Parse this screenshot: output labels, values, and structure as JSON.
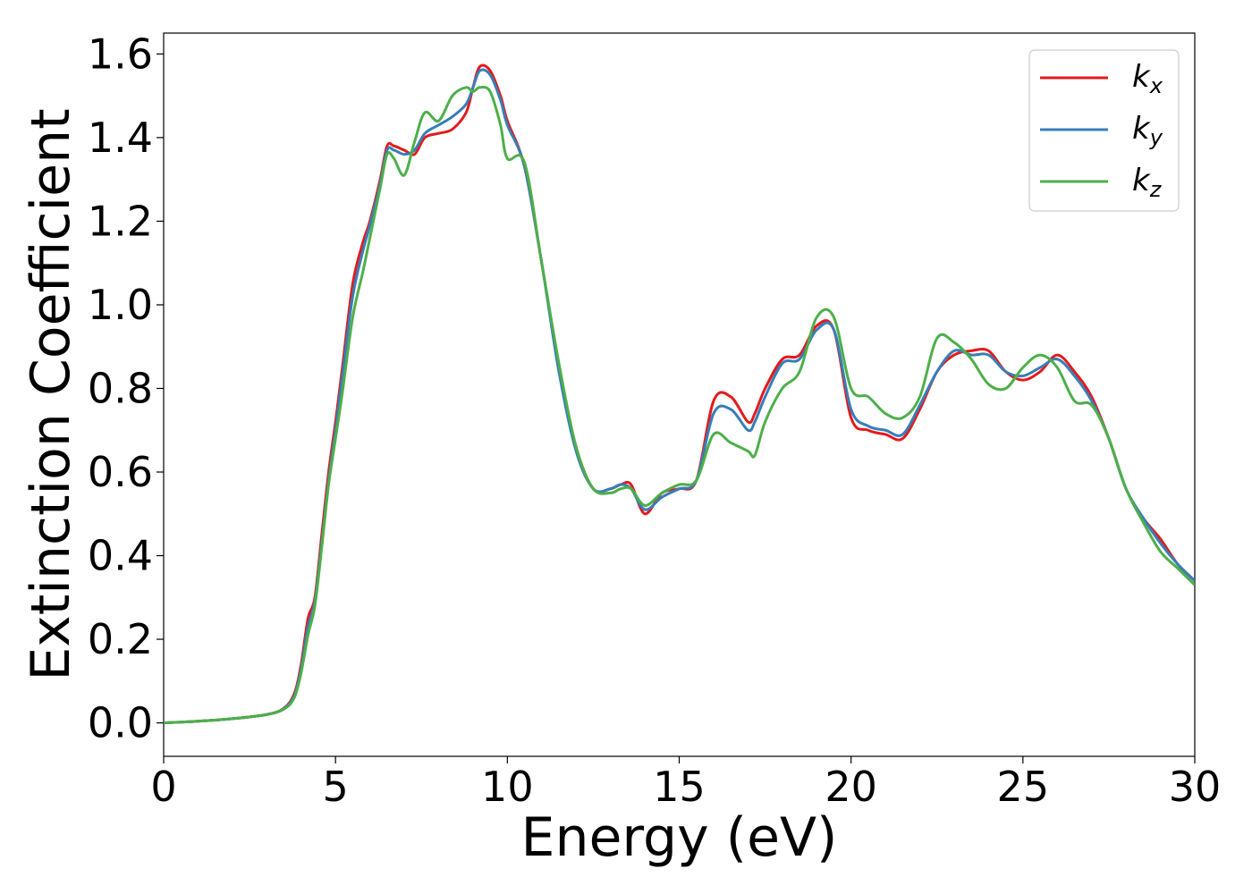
{
  "chart_data": {
    "type": "line",
    "xlabel": "Energy (eV)",
    "ylabel": "Extinction Coefficient",
    "xlim": [
      0,
      30
    ],
    "ylim": [
      -0.08,
      1.65
    ],
    "xticks": [
      0,
      5,
      10,
      15,
      20,
      25,
      30
    ],
    "xtick_labels": [
      "0",
      "5",
      "10",
      "15",
      "20",
      "25",
      "30"
    ],
    "yticks": [
      0.0,
      0.2,
      0.4,
      0.6,
      0.8,
      1.0,
      1.2,
      1.4,
      1.6
    ],
    "ytick_labels": [
      "0.0",
      "0.2",
      "0.4",
      "0.6",
      "0.8",
      "1.0",
      "1.2",
      "1.4",
      "1.6"
    ],
    "grid": false,
    "legend_position": "top-right",
    "series": [
      {
        "name": "k_x",
        "label_base": "k",
        "label_sub": "x",
        "color": "#e41a1c",
        "x": [
          0,
          1,
          2,
          3,
          3.5,
          3.8,
          4.0,
          4.2,
          4.4,
          4.6,
          4.8,
          5.0,
          5.2,
          5.5,
          5.8,
          6.0,
          6.3,
          6.5,
          6.7,
          7.0,
          7.3,
          7.6,
          8.0,
          8.4,
          8.8,
          9.0,
          9.2,
          9.5,
          9.8,
          10.0,
          10.5,
          11.0,
          11.5,
          12.0,
          12.5,
          13.0,
          13.3,
          13.6,
          14.0,
          14.5,
          15.0,
          15.5,
          16.0,
          16.5,
          17.0,
          17.2,
          17.5,
          18.0,
          18.5,
          19.0,
          19.5,
          20.0,
          20.5,
          21.0,
          21.5,
          22.0,
          22.5,
          23.0,
          23.5,
          24.0,
          24.5,
          25.0,
          25.5,
          26.0,
          26.5,
          27.0,
          27.5,
          28.0,
          28.5,
          29.0,
          29.5,
          30.0
        ],
        "values": [
          0.0,
          0.004,
          0.01,
          0.02,
          0.035,
          0.07,
          0.14,
          0.25,
          0.3,
          0.45,
          0.6,
          0.72,
          0.85,
          1.05,
          1.15,
          1.2,
          1.3,
          1.38,
          1.38,
          1.37,
          1.36,
          1.4,
          1.41,
          1.42,
          1.46,
          1.52,
          1.57,
          1.56,
          1.5,
          1.44,
          1.33,
          1.1,
          0.85,
          0.66,
          0.56,
          0.56,
          0.57,
          0.57,
          0.5,
          0.55,
          0.56,
          0.58,
          0.77,
          0.78,
          0.72,
          0.74,
          0.8,
          0.87,
          0.88,
          0.95,
          0.94,
          0.73,
          0.7,
          0.69,
          0.68,
          0.75,
          0.84,
          0.88,
          0.89,
          0.89,
          0.84,
          0.82,
          0.84,
          0.88,
          0.84,
          0.78,
          0.68,
          0.56,
          0.49,
          0.44,
          0.38,
          0.34
        ]
      },
      {
        "name": "k_y",
        "label_base": "k",
        "label_sub": "y",
        "color": "#377eb8",
        "x": [
          0,
          1,
          2,
          3,
          3.5,
          3.8,
          4.0,
          4.2,
          4.4,
          4.6,
          4.8,
          5.0,
          5.2,
          5.5,
          5.8,
          6.0,
          6.3,
          6.5,
          6.7,
          7.0,
          7.3,
          7.6,
          8.0,
          8.4,
          8.8,
          9.0,
          9.2,
          9.5,
          9.8,
          10.0,
          10.5,
          11.0,
          11.5,
          12.0,
          12.5,
          13.0,
          13.3,
          13.6,
          14.0,
          14.5,
          15.0,
          15.5,
          16.0,
          16.5,
          17.0,
          17.2,
          17.5,
          18.0,
          18.5,
          19.0,
          19.5,
          20.0,
          20.5,
          21.0,
          21.5,
          22.0,
          22.5,
          23.0,
          23.5,
          24.0,
          24.5,
          25.0,
          25.5,
          26.0,
          26.5,
          27.0,
          27.5,
          28.0,
          28.5,
          29.0,
          29.5,
          30.0
        ],
        "values": [
          0.0,
          0.004,
          0.01,
          0.02,
          0.034,
          0.065,
          0.13,
          0.23,
          0.29,
          0.43,
          0.58,
          0.7,
          0.83,
          1.02,
          1.13,
          1.19,
          1.29,
          1.37,
          1.37,
          1.36,
          1.37,
          1.41,
          1.43,
          1.45,
          1.48,
          1.52,
          1.56,
          1.55,
          1.49,
          1.43,
          1.33,
          1.1,
          0.84,
          0.65,
          0.56,
          0.56,
          0.57,
          0.56,
          0.51,
          0.54,
          0.56,
          0.58,
          0.74,
          0.75,
          0.7,
          0.72,
          0.78,
          0.86,
          0.87,
          0.94,
          0.94,
          0.75,
          0.71,
          0.7,
          0.69,
          0.76,
          0.84,
          0.89,
          0.88,
          0.88,
          0.84,
          0.83,
          0.85,
          0.87,
          0.83,
          0.77,
          0.68,
          0.56,
          0.49,
          0.43,
          0.38,
          0.34
        ]
      },
      {
        "name": "k_z",
        "label_base": "k",
        "label_sub": "z",
        "color": "#4daf4a",
        "x": [
          0,
          1,
          2,
          3,
          3.5,
          3.8,
          4.0,
          4.2,
          4.4,
          4.6,
          4.8,
          5.0,
          5.2,
          5.5,
          5.8,
          6.0,
          6.3,
          6.5,
          6.7,
          7.0,
          7.3,
          7.6,
          8.0,
          8.4,
          8.8,
          9.0,
          9.2,
          9.5,
          9.8,
          10.0,
          10.5,
          11.0,
          11.5,
          12.0,
          12.5,
          13.0,
          13.3,
          13.6,
          14.0,
          14.5,
          15.0,
          15.5,
          16.0,
          16.5,
          17.0,
          17.2,
          17.5,
          18.0,
          18.5,
          19.0,
          19.5,
          20.0,
          20.5,
          21.0,
          21.5,
          22.0,
          22.5,
          23.0,
          23.5,
          24.0,
          24.5,
          25.0,
          25.5,
          26.0,
          26.5,
          27.0,
          27.5,
          28.0,
          28.5,
          29.0,
          29.5,
          30.0
        ],
        "values": [
          0.0,
          0.004,
          0.01,
          0.02,
          0.033,
          0.06,
          0.12,
          0.21,
          0.28,
          0.42,
          0.57,
          0.68,
          0.79,
          0.97,
          1.08,
          1.16,
          1.28,
          1.36,
          1.35,
          1.31,
          1.39,
          1.46,
          1.44,
          1.5,
          1.52,
          1.51,
          1.52,
          1.51,
          1.43,
          1.35,
          1.34,
          1.1,
          0.86,
          0.66,
          0.56,
          0.55,
          0.56,
          0.56,
          0.52,
          0.55,
          0.57,
          0.58,
          0.69,
          0.67,
          0.65,
          0.64,
          0.72,
          0.8,
          0.84,
          0.97,
          0.97,
          0.8,
          0.78,
          0.74,
          0.73,
          0.78,
          0.92,
          0.91,
          0.87,
          0.81,
          0.8,
          0.85,
          0.88,
          0.85,
          0.77,
          0.76,
          0.68,
          0.56,
          0.48,
          0.41,
          0.37,
          0.33
        ]
      }
    ]
  }
}
